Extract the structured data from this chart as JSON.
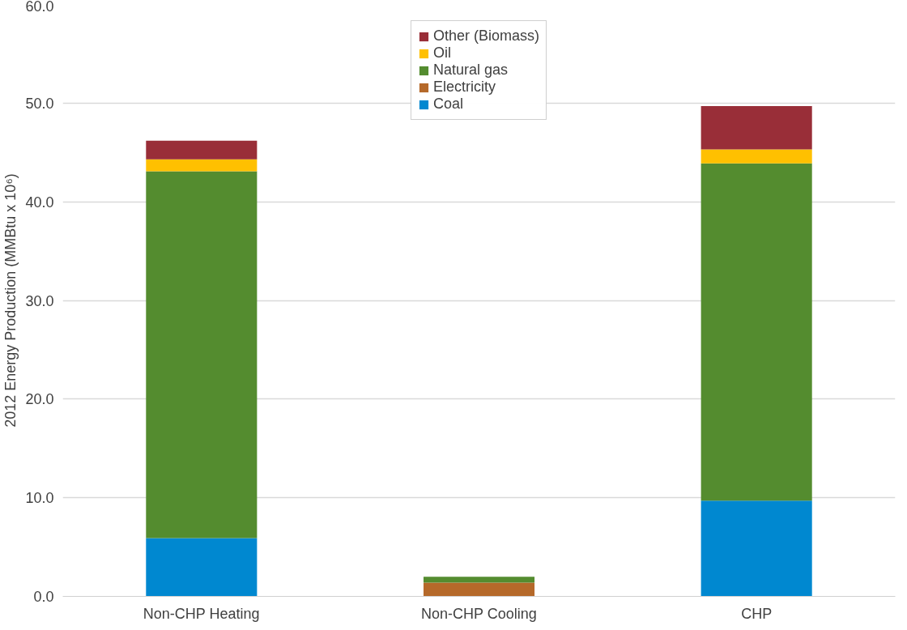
{
  "chart_data": {
    "type": "bar",
    "stacked": true,
    "ylabel": "2012 Energy Production (MMBtu x 10⁶)",
    "categories": [
      "Non-CHP Heating",
      "Non-CHP Cooling",
      "CHP"
    ],
    "series": [
      {
        "name": "Coal",
        "color": "#0088d0",
        "values": [
          5.9,
          0,
          9.7
        ]
      },
      {
        "name": "Electricity",
        "color": "#b5692a",
        "values": [
          0,
          1.4,
          0
        ]
      },
      {
        "name": "Natural gas",
        "color": "#548c2f",
        "values": [
          37.2,
          0.6,
          34.2
        ]
      },
      {
        "name": "Oil",
        "color": "#ffc000",
        "values": [
          1.2,
          0,
          1.4
        ]
      },
      {
        "name": "Other (Biomass)",
        "color": "#992e38",
        "values": [
          1.9,
          0,
          4.4
        ]
      }
    ],
    "ylim": [
      0,
      60
    ],
    "yticks": [
      {
        "value": 0,
        "label": "0.0"
      },
      {
        "value": 10,
        "label": "10.0"
      },
      {
        "value": 20,
        "label": "20.0"
      },
      {
        "value": 30,
        "label": "30.0"
      },
      {
        "value": 40,
        "label": "40.0"
      },
      {
        "value": 50,
        "label": "50.0"
      },
      {
        "value": 60,
        "label": "60.0"
      }
    ],
    "grid": "y",
    "legend": "top"
  }
}
